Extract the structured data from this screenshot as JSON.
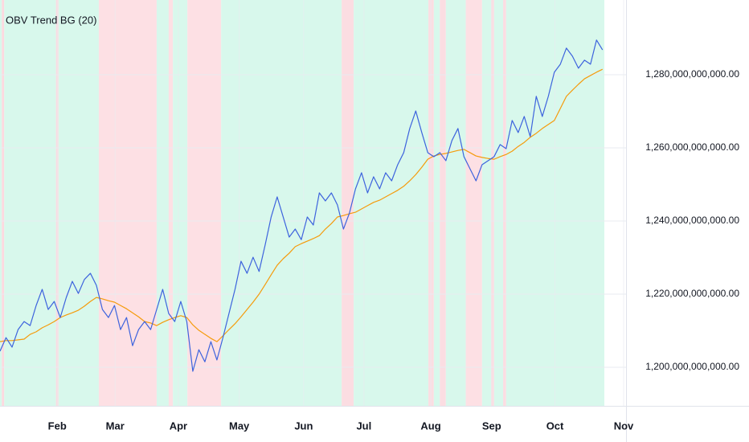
{
  "chart_data": {
    "type": "line",
    "title": "OBV Trend BG (20)",
    "x": [
      0,
      1,
      2,
      3,
      4,
      5,
      6,
      7,
      8,
      9,
      10,
      11,
      12,
      13,
      14,
      15,
      16,
      17,
      18,
      19,
      20,
      21,
      22,
      23,
      24,
      25,
      26,
      27,
      28,
      29,
      30,
      31,
      32,
      33,
      34,
      35,
      36,
      37,
      38,
      39,
      40,
      41,
      42,
      43,
      44,
      45,
      46,
      47,
      48,
      49,
      50,
      51,
      52,
      53,
      54,
      55,
      56,
      57,
      58,
      59,
      60,
      61,
      62,
      63,
      64,
      65,
      66,
      67,
      68,
      69,
      70,
      71,
      72,
      73,
      74,
      75,
      76,
      77,
      78,
      79,
      80,
      81,
      82,
      83,
      84,
      85,
      86,
      87,
      88,
      89,
      90,
      91,
      92,
      93,
      94,
      95,
      96,
      97,
      98,
      99,
      100
    ],
    "series": [
      {
        "color": "#3d63dd",
        "values": [
          1204400000000.0,
          1208100000000.0,
          1205500000000.0,
          1210300000000.0,
          1212500000000.0,
          1211400000000.0,
          1216900000000.0,
          1221300000000.0,
          1215800000000.0,
          1218000000000.0,
          1213600000000.0,
          1219100000000.0,
          1223500000000.0,
          1220200000000.0,
          1224000000000.0,
          1225700000000.0,
          1222400000000.0,
          1215800000000.0,
          1213600000000.0,
          1216900000000.0,
          1210300000000.0,
          1213600000000.0,
          1205900000000.0,
          1210300000000.0,
          1212500000000.0,
          1210300000000.0,
          1215800000000.0,
          1221300000000.0,
          1214700000000.0,
          1212500000000.0,
          1218000000000.0,
          1212500000000.0,
          1198900000000.0,
          1204800000000.0,
          1201500000000.0,
          1207000000000.0,
          1202000000000.0,
          1208100000000.0,
          1214700000000.0,
          1221300000000.0,
          1229000000000.0,
          1225700000000.0,
          1230100000000.0,
          1226200000000.0,
          1233400000000.0,
          1241100000000.0,
          1246600000000.0,
          1241100000000.0,
          1235600000000.0,
          1237800000000.0,
          1234900000000.0,
          1241100000000.0,
          1238900000000.0,
          1247700000000.0,
          1245500000000.0,
          1247700000000.0,
          1244400000000.0,
          1237800000000.0,
          1242200000000.0,
          1248800000000.0,
          1253200000000.0,
          1247700000000.0,
          1252100000000.0,
          1248800000000.0,
          1253200000000.0,
          1251000000000.0,
          1255400000000.0,
          1258700000000.0,
          1265300000000.0,
          1270100000000.0,
          1264200000000.0,
          1258700000000.0,
          1257600000000.0,
          1258700000000.0,
          1256500000000.0,
          1262000000000.0,
          1265300000000.0,
          1257600000000.0,
          1254300000000.0,
          1251000000000.0,
          1255400000000.0,
          1256500000000.0,
          1257600000000.0,
          1260900000000.0,
          1259800000000.0,
          1267500000000.0,
          1264200000000.0,
          1268600000000.0,
          1263100000000.0,
          1274100000000.0,
          1268600000000.0,
          1274100000000.0,
          1280700000000.0,
          1282900000000.0,
          1287300000000.0,
          1285100000000.0,
          1281800000000.0,
          1284000000000.0,
          1282900000000.0,
          1289500000000.0,
          1286800000000.0
        ]
      },
      {
        "color": "#f59b0c",
        "values": [
          1207000000000.0,
          1207300000000.0,
          1207300000000.0,
          1207500000000.0,
          1207700000000.0,
          1209000000000.0,
          1209700000000.0,
          1210800000000.0,
          1211600000000.0,
          1212500000000.0,
          1213600000000.0,
          1214300000000.0,
          1214900000000.0,
          1215600000000.0,
          1216700000000.0,
          1218000000000.0,
          1219100000000.0,
          1218700000000.0,
          1218200000000.0,
          1217800000000.0,
          1216900000000.0,
          1216000000000.0,
          1214900000000.0,
          1213800000000.0,
          1212500000000.0,
          1212100000000.0,
          1211400000000.0,
          1212300000000.0,
          1213000000000.0,
          1213600000000.0,
          1214100000000.0,
          1213600000000.0,
          1211600000000.0,
          1210100000000.0,
          1209000000000.0,
          1207900000000.0,
          1207000000000.0,
          1208600000000.0,
          1210300000000.0,
          1211900000000.0,
          1213800000000.0,
          1215800000000.0,
          1217800000000.0,
          1220000000000.0,
          1222600000000.0,
          1225300000000.0,
          1227900000000.0,
          1229700000000.0,
          1231200000000.0,
          1233000000000.0,
          1233800000000.0,
          1234500000000.0,
          1235200000000.0,
          1236000000000.0,
          1237800000000.0,
          1239300000000.0,
          1241100000000.0,
          1241500000000.0,
          1242000000000.0,
          1242400000000.0,
          1243300000000.0,
          1244200000000.0,
          1245100000000.0,
          1245700000000.0,
          1246600000000.0,
          1247500000000.0,
          1248400000000.0,
          1249500000000.0,
          1251000000000.0,
          1252700000000.0,
          1254700000000.0,
          1256900000000.0,
          1257800000000.0,
          1258200000000.0,
          1258500000000.0,
          1258900000000.0,
          1259300000000.0,
          1259600000000.0,
          1258700000000.0,
          1257800000000.0,
          1257400000000.0,
          1257100000000.0,
          1256900000000.0,
          1257600000000.0,
          1258200000000.0,
          1259100000000.0,
          1260400000000.0,
          1261500000000.0,
          1262900000000.0,
          1264000000000.0,
          1265300000000.0,
          1266400000000.0,
          1267500000000.0,
          1270800000000.0,
          1274100000000.0,
          1275800000000.0,
          1277400000000.0,
          1278900000000.0,
          1279800000000.0,
          1280700000000.0,
          1281500000000.0
        ]
      }
    ],
    "bands": [
      {
        "from": 0,
        "to": 0.3,
        "color": "#d8f8ec"
      },
      {
        "from": 0.3,
        "to": 0.7,
        "color": "#fcd9df"
      },
      {
        "from": 0.7,
        "to": 9.3,
        "color": "#d8f8ec"
      },
      {
        "from": 9.3,
        "to": 9.7,
        "color": "#fcd9df"
      },
      {
        "from": 9.7,
        "to": 16.4,
        "color": "#d8f8ec"
      },
      {
        "from": 16.4,
        "to": 26,
        "color": "#fde0e4"
      },
      {
        "from": 26,
        "to": 28,
        "color": "#d8f8ec"
      },
      {
        "from": 28,
        "to": 28.7,
        "color": "#fde0e4"
      },
      {
        "from": 28.7,
        "to": 31.1,
        "color": "#d8f8ec"
      },
      {
        "from": 31.1,
        "to": 36.7,
        "color": "#fde0e4"
      },
      {
        "from": 36.7,
        "to": 56.7,
        "color": "#d8f8ec"
      },
      {
        "from": 56.7,
        "to": 58.7,
        "color": "#fbdde2"
      },
      {
        "from": 58.7,
        "to": 71.1,
        "color": "#d8f8ec"
      },
      {
        "from": 71.1,
        "to": 72,
        "color": "#fbdde2"
      },
      {
        "from": 72,
        "to": 73,
        "color": "#d8f8ec"
      },
      {
        "from": 73,
        "to": 74,
        "color": "#fbdde2"
      },
      {
        "from": 74,
        "to": 77.3,
        "color": "#d8f8ec"
      },
      {
        "from": 77.3,
        "to": 80,
        "color": "#fde0e4"
      },
      {
        "from": 80,
        "to": 81.5,
        "color": "#d8f8ec"
      },
      {
        "from": 81.5,
        "to": 82,
        "color": "#fbdde2"
      },
      {
        "from": 82,
        "to": 83.5,
        "color": "#d8f8ec"
      },
      {
        "from": 83.5,
        "to": 84,
        "color": "#fbdde2"
      },
      {
        "from": 84,
        "to": 100.3,
        "color": "#d8f8ec"
      }
    ],
    "xlim": [
      0,
      103.9
    ],
    "xticks": [
      {
        "value": 9.5,
        "label": "Feb"
      },
      {
        "value": 19.1,
        "label": "Mar"
      },
      {
        "value": 29.6,
        "label": "Apr"
      },
      {
        "value": 39.7,
        "label": "May"
      },
      {
        "value": 50.4,
        "label": "Jun"
      },
      {
        "value": 60.4,
        "label": "Jul"
      },
      {
        "value": 71.5,
        "label": "Aug"
      },
      {
        "value": 81.6,
        "label": "Sep"
      },
      {
        "value": 92.1,
        "label": "Oct"
      },
      {
        "value": 103.5,
        "label": "Nov"
      }
    ],
    "ylim": [
      1189450000000.0,
      1300450000000.0
    ],
    "yticks": [
      {
        "value": 1200000000000.0,
        "label": "1,200,000,000,000.00"
      },
      {
        "value": 1220000000000.0,
        "label": "1,220,000,000,000.00"
      },
      {
        "value": 1240000000000.0,
        "label": "1,240,000,000,000.00"
      },
      {
        "value": 1260000000000.0,
        "label": "1,260,000,000,000.00"
      },
      {
        "value": 1280000000000.0,
        "label": "1,280,000,000,000.00"
      }
    ],
    "grid": true
  }
}
